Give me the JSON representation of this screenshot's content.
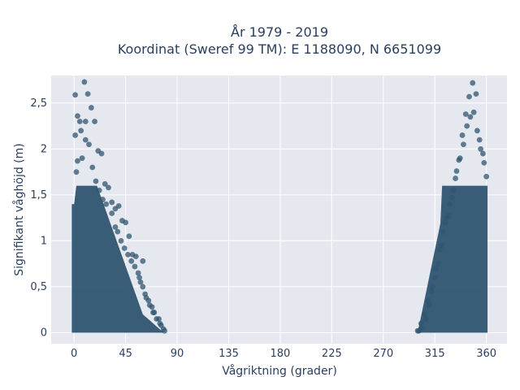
{
  "chart_data": {
    "type": "scatter",
    "title": "År 1979 - 2019",
    "subtitle": "Koordinat (Sweref 99 TM): E 1188090, N 6651099",
    "xlabel": "Vågriktning (grader)",
    "ylabel": "Signifikant våghöjd (m)",
    "xlim": [
      -20,
      378
    ],
    "ylim": [
      -0.12,
      2.8
    ],
    "x_ticks": [
      0,
      45,
      90,
      135,
      180,
      225,
      270,
      315,
      360
    ],
    "x_tick_labels": [
      "0",
      "45",
      "90",
      "135",
      "180",
      "225",
      "270",
      "315",
      "360"
    ],
    "y_ticks": [
      0,
      0.5,
      1,
      1.5,
      2,
      2.5
    ],
    "y_tick_labels": [
      "0",
      "0,5",
      "1",
      "1,5",
      "2",
      "2,5"
    ],
    "grid": true,
    "marker_color": "#2f5570",
    "plot_background": "#e5e8ef",
    "series": [
      {
        "x": [
          1,
          3,
          6,
          9,
          12,
          15,
          18,
          21,
          24,
          27,
          30,
          33,
          36,
          39,
          42,
          45,
          48,
          51,
          54,
          57,
          60,
          63,
          66,
          69,
          72,
          75,
          78,
          1,
          5,
          10,
          10,
          13,
          7,
          3,
          2,
          16,
          19,
          22,
          25,
          28,
          33,
          36,
          38,
          41,
          44,
          47,
          50,
          53,
          56,
          58,
          60,
          62,
          65,
          68,
          70,
          74,
          76,
          79,
          300,
          303,
          306,
          309,
          312,
          315,
          318,
          321,
          324,
          327,
          330,
          333,
          336,
          339,
          342,
          345,
          348,
          351,
          354,
          357,
          360,
          358,
          355,
          352,
          349,
          346,
          343,
          340,
          337,
          334,
          331,
          328,
          325,
          322,
          319,
          316,
          313,
          310,
          307,
          304,
          301
        ],
        "y": [
          2.59,
          2.36,
          2.2,
          2.73,
          2.6,
          2.45,
          2.3,
          1.98,
          1.95,
          1.62,
          1.58,
          1.42,
          1.35,
          1.38,
          1.22,
          1.2,
          1.05,
          0.85,
          0.83,
          0.6,
          0.78,
          0.38,
          0.3,
          0.22,
          0.15,
          0.1,
          0.04,
          2.15,
          2.3,
          2.3,
          2.1,
          2.05,
          1.9,
          1.87,
          1.75,
          1.8,
          1.65,
          1.55,
          1.45,
          1.4,
          1.3,
          1.15,
          1.1,
          1.0,
          0.92,
          0.85,
          0.78,
          0.72,
          0.65,
          0.55,
          0.5,
          0.42,
          0.35,
          0.28,
          0.22,
          0.15,
          0.08,
          0.02,
          0.02,
          0.1,
          0.2,
          0.35,
          0.45,
          0.6,
          0.75,
          0.95,
          1.2,
          1.27,
          1.47,
          1.68,
          1.88,
          2.15,
          2.38,
          2.57,
          2.72,
          2.6,
          2.1,
          1.95,
          1.7,
          1.85,
          2.0,
          2.2,
          2.4,
          2.35,
          2.25,
          2.05,
          1.9,
          1.76,
          1.55,
          1.4,
          1.25,
          1.1,
          0.9,
          0.7,
          0.5,
          0.3,
          0.15,
          0.05,
          0.02
        ]
      }
    ]
  }
}
